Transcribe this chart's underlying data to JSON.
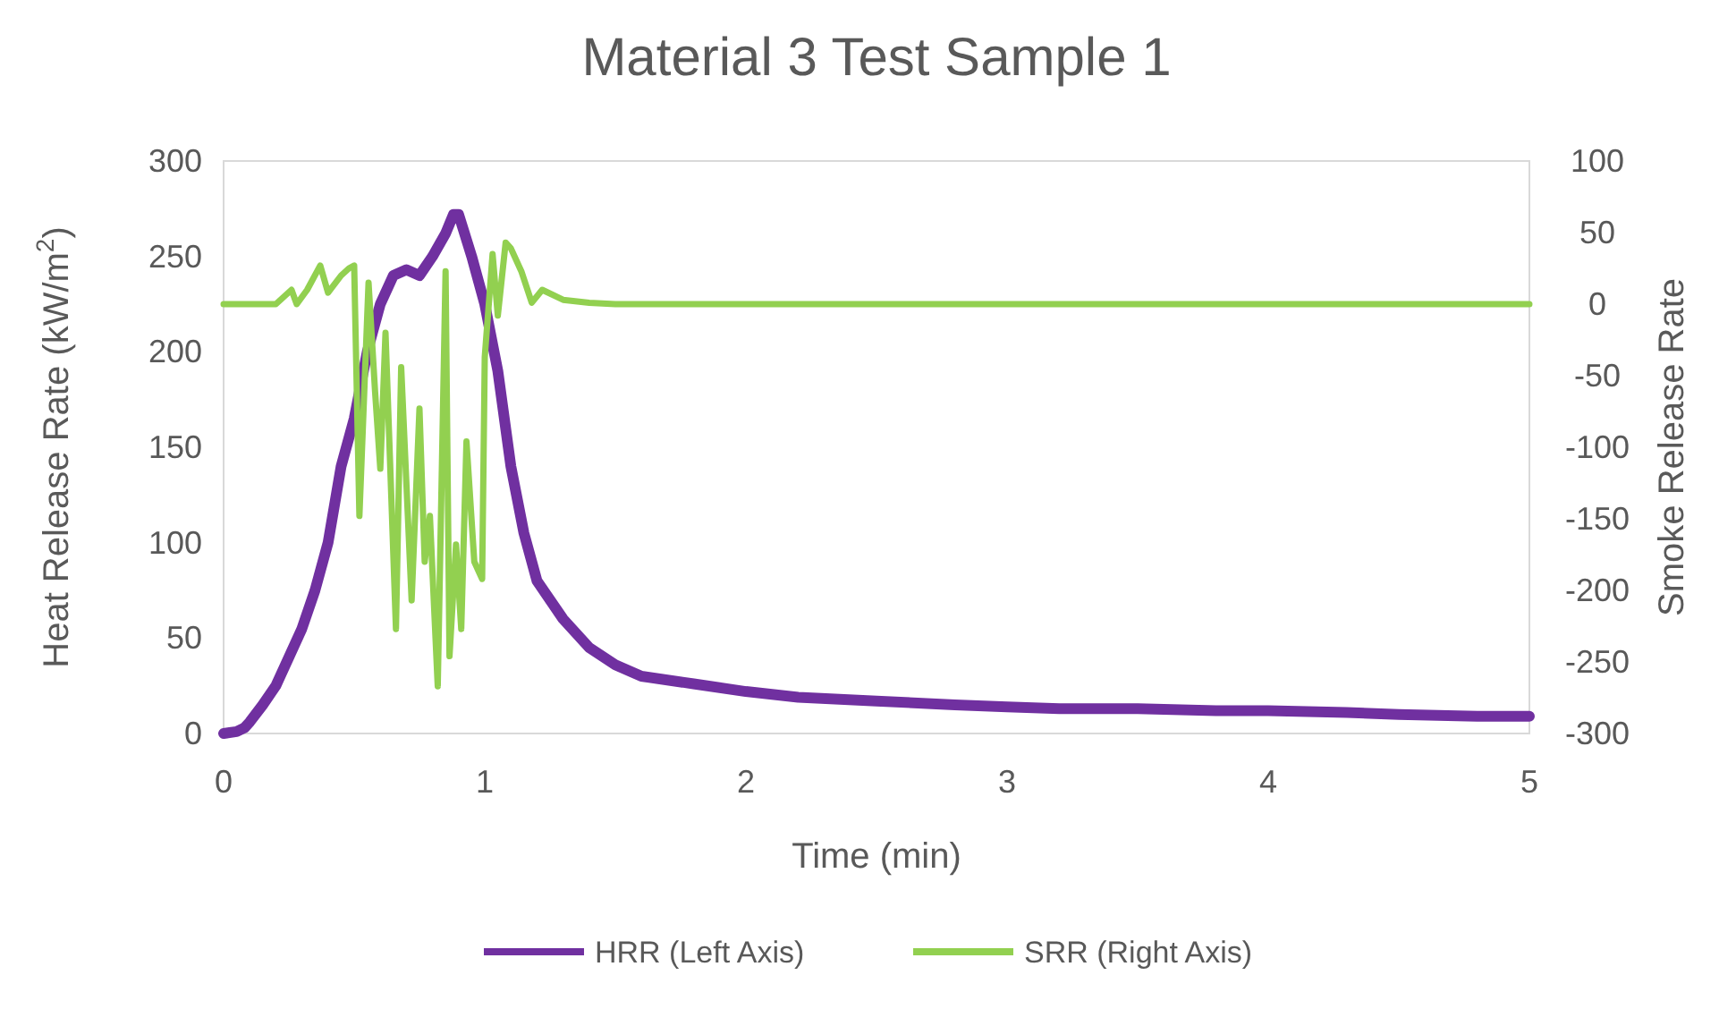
{
  "chart_data": {
    "type": "line",
    "title": "Material 3 Test Sample 1",
    "xlabel": "Time (min)",
    "ylabel": "Heat Release Rate (kW/m$^{2}$)",
    "y2label": "Smoke Release Rate",
    "xlim": [
      0,
      5
    ],
    "xticks": [
      0,
      1,
      2,
      3,
      4,
      5
    ],
    "ylim": [
      0,
      300
    ],
    "yticks": [
      0,
      50,
      100,
      150,
      200,
      250,
      300
    ],
    "y2lim": [
      -300,
      100
    ],
    "y2ticks": [
      -300,
      -250,
      -200,
      -150,
      -100,
      -50,
      0,
      50,
      100
    ],
    "grid": false,
    "legend": "bottom",
    "series": [
      {
        "name": "HRR (Left Axis)",
        "color": "#7030a0",
        "x": [
          0,
          0.05,
          0.08,
          0.1,
          0.15,
          0.2,
          0.25,
          0.3,
          0.35,
          0.4,
          0.45,
          0.5,
          0.55,
          0.6,
          0.65,
          0.7,
          0.75,
          0.8,
          0.85,
          0.88,
          0.9,
          0.95,
          1.0,
          1.05,
          1.1,
          1.15,
          1.2,
          1.3,
          1.4,
          1.5,
          1.6,
          1.8,
          2.0,
          2.2,
          2.5,
          2.8,
          3.0,
          3.2,
          3.5,
          3.8,
          4.0,
          4.3,
          4.5,
          4.8,
          5.0
        ],
        "values": [
          0,
          1,
          3,
          6,
          15,
          25,
          40,
          55,
          75,
          100,
          140,
          165,
          200,
          225,
          240,
          243,
          240,
          250,
          262,
          272,
          272,
          250,
          225,
          190,
          140,
          105,
          80,
          60,
          45,
          36,
          30,
          26,
          22,
          19,
          17,
          15,
          14,
          13,
          13,
          12,
          12,
          11,
          10,
          9,
          9
        ]
      },
      {
        "name": "SRR (Right Axis)",
        "color": "#92d050",
        "axis": "y2",
        "x": [
          0,
          0.2,
          0.23,
          0.26,
          0.28,
          0.32,
          0.37,
          0.4,
          0.45,
          0.48,
          0.5,
          0.52,
          0.555,
          0.58,
          0.6,
          0.62,
          0.66,
          0.68,
          0.72,
          0.75,
          0.77,
          0.79,
          0.82,
          0.85,
          0.865,
          0.89,
          0.91,
          0.93,
          0.96,
          0.99,
          1.0,
          1.03,
          1.05,
          1.08,
          1.1,
          1.14,
          1.18,
          1.22,
          1.3,
          1.4,
          1.5,
          2.0,
          3.0,
          4.0,
          5.0
        ],
        "values": [
          0,
          0,
          5,
          10,
          0,
          10,
          27,
          8,
          20,
          25,
          27,
          -148,
          15,
          -61,
          -115,
          -20,
          -227,
          -44,
          -207,
          -73,
          -180,
          -148,
          -267,
          23,
          -246,
          -168,
          -227,
          -96,
          -180,
          -192,
          -37,
          35,
          -8,
          43,
          39,
          23,
          1,
          10,
          3,
          1,
          0,
          0,
          0,
          0,
          0
        ]
      }
    ]
  }
}
